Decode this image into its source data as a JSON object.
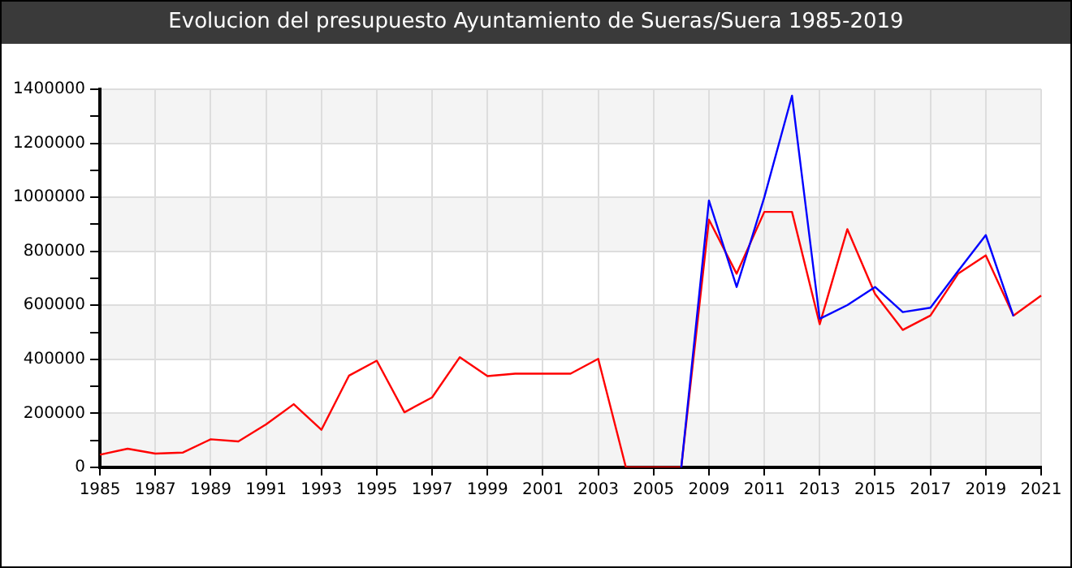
{
  "chart_data": {
    "type": "line",
    "title": "Evolucion del presupuesto Ayuntamiento de Sueras/Suera 1985-2019",
    "categories": [
      "1985",
      null,
      "1987",
      null,
      "1989",
      null,
      "1991",
      null,
      "1993",
      null,
      "1995",
      null,
      "1997",
      null,
      "1999",
      null,
      "2001",
      null,
      "2003",
      null,
      "2005",
      null,
      "2009",
      null,
      "2011",
      null,
      "2013",
      null,
      "2015",
      null,
      "2017",
      null,
      "2019",
      null,
      "2021"
    ],
    "series": [
      {
        "color": "#0000ff",
        "values": [
          null,
          null,
          null,
          null,
          null,
          null,
          null,
          null,
          null,
          null,
          null,
          null,
          null,
          null,
          null,
          null,
          null,
          null,
          null,
          null,
          null,
          0,
          988000,
          668000,
          1000000,
          1376000,
          550000,
          601000,
          668000,
          575000,
          591000,
          727000,
          860000,
          560000,
          null
        ]
      },
      {
        "color": "#ff0000",
        "values": [
          47000,
          69000,
          51000,
          55000,
          104000,
          96000,
          159000,
          234000,
          139000,
          340000,
          395000,
          204000,
          259000,
          408000,
          338000,
          347000,
          347000,
          347000,
          402000,
          0,
          0,
          0,
          917000,
          717000,
          946000,
          946000,
          530000,
          882000,
          642000,
          509000,
          562000,
          717000,
          785000,
          562000,
          636000
        ]
      }
    ],
    "ylim": [
      0,
      1400000
    ],
    "yticks": [
      0,
      {
        "value": 100000,
        "label": null
      },
      200000,
      {
        "value": 300000,
        "label": null
      },
      400000,
      {
        "value": 500000,
        "label": null
      },
      600000,
      {
        "value": 700000,
        "label": null
      },
      800000,
      {
        "value": 900000,
        "label": null
      },
      1000000,
      {
        "value": 1100000,
        "label": null
      },
      1200000,
      {
        "value": 1300000,
        "label": null
      },
      1400000
    ],
    "grid": true,
    "marker": "none",
    "line_style": "solid"
  }
}
